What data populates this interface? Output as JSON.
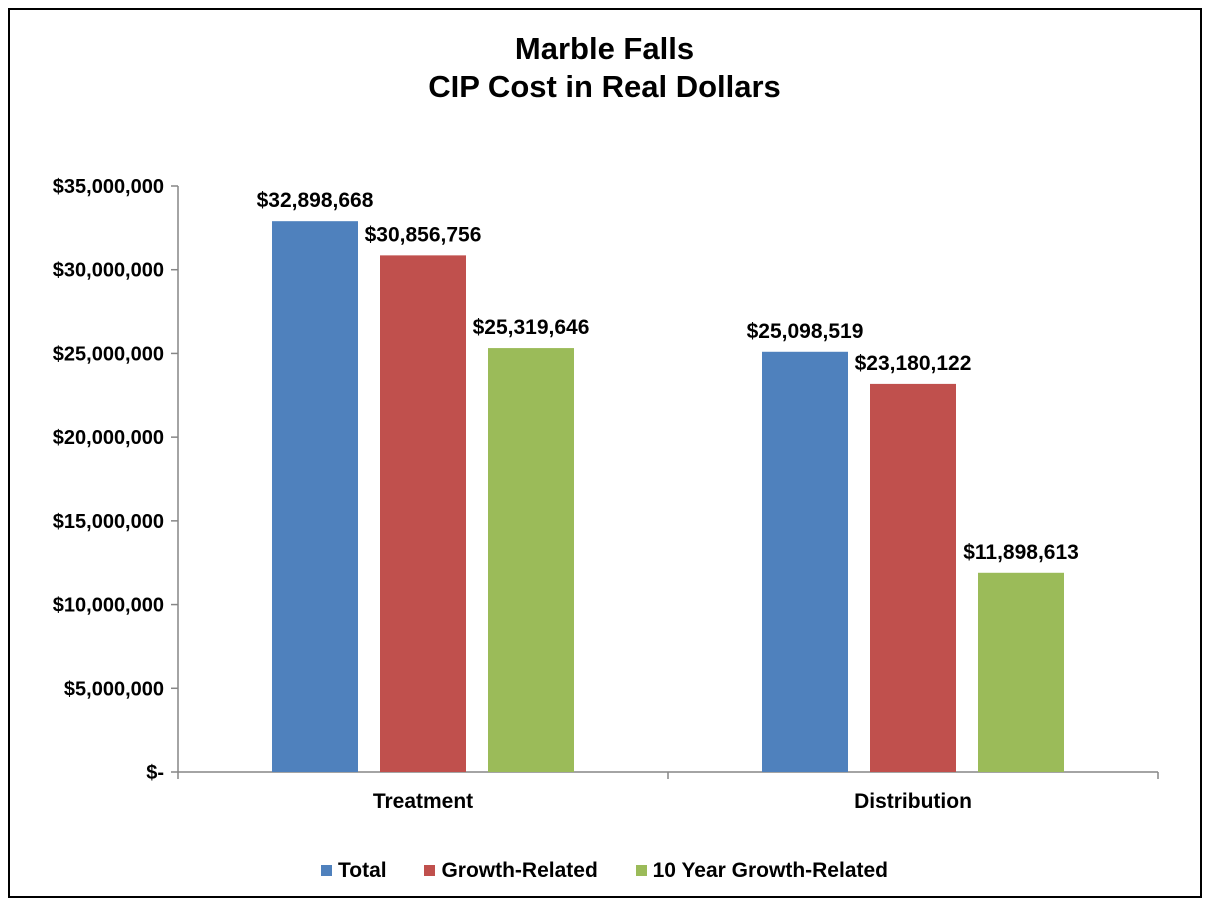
{
  "chart_data": {
    "type": "bar",
    "title": [
      "Marble Falls",
      "CIP Cost in Real Dollars"
    ],
    "categories": [
      "Treatment",
      "Distribution"
    ],
    "series": [
      {
        "name": "Total",
        "color": "#4F81BD",
        "values": [
          32898668,
          25098519
        ],
        "labels": [
          "$32,898,668",
          "$25,098,519"
        ]
      },
      {
        "name": "Growth-Related",
        "color": "#C0504D",
        "values": [
          30856756,
          23180122
        ],
        "labels": [
          "$30,856,756",
          "$23,180,122"
        ]
      },
      {
        "name": "10 Year Growth-Related",
        "color": "#9BBB59",
        "values": [
          25319646,
          11898613
        ],
        "labels": [
          "$25,319,646",
          "$11,898,613"
        ]
      }
    ],
    "ylim": [
      0,
      35000000
    ],
    "yticks": [
      0,
      5000000,
      10000000,
      15000000,
      20000000,
      25000000,
      30000000,
      35000000
    ],
    "ytick_labels": [
      "$-",
      "$5,000,000",
      "$10,000,000",
      "$15,000,000",
      "$20,000,000",
      "$25,000,000",
      "$30,000,000",
      "$35,000,000"
    ],
    "grid": false,
    "legend_position": "bottom",
    "xlabel": "",
    "ylabel": ""
  }
}
